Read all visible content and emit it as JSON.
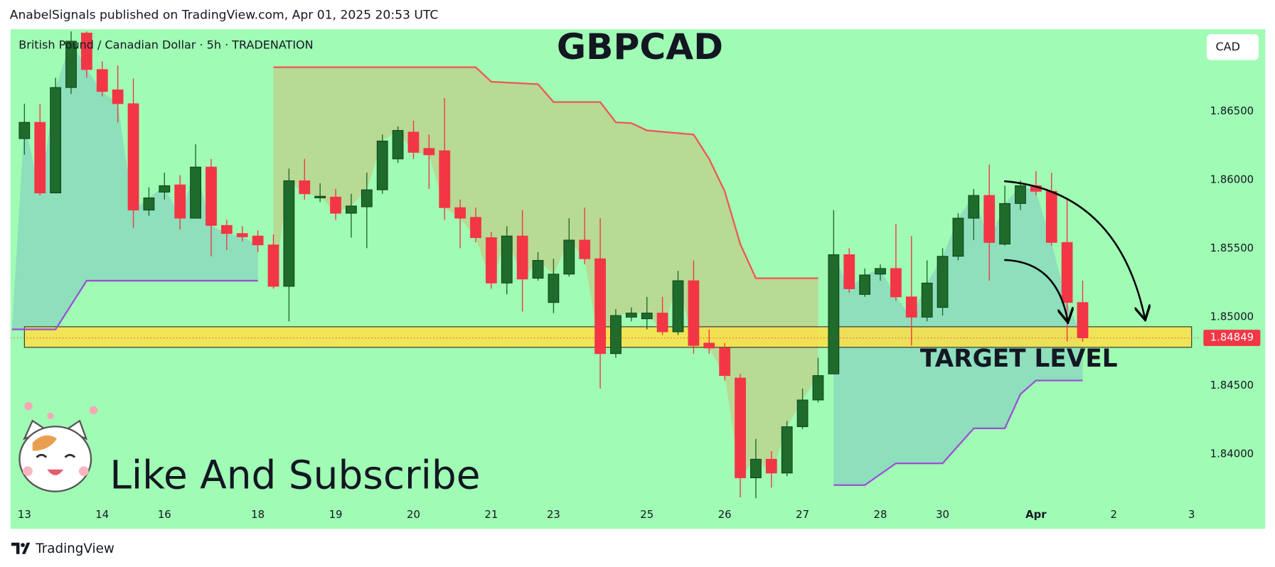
{
  "header": "AnabelSignals published on TradingView.com, Apr 01, 2025 20:53 UTC",
  "footer": "TradingView",
  "currency_button": "CAD",
  "call_to_action": "Like And Subscribe",
  "chart_data": {
    "type": "candlestick",
    "title": "GBPCAD",
    "subtitle": "British Pound / Canadian Dollar · 5h · TRADENATION",
    "up_color": "#1e6b2c",
    "down_color": "#f23645",
    "open": [
      1.86302,
      1.86421,
      1.85906,
      1.86675,
      1.87072,
      1.86806,
      1.86658,
      1.86557,
      1.85781,
      1.85912,
      1.85965,
      1.85722,
      1.86095,
      1.85669,
      1.8561,
      1.85592,
      1.85527,
      1.85225,
      1.85995,
      1.8587,
      1.85876,
      1.85758,
      1.85805,
      1.85929,
      1.86154,
      1.8635,
      1.86231,
      1.86214,
      1.85799,
      1.85728,
      1.8558,
      1.85249,
      1.85592,
      1.85284,
      1.85107,
      1.85314,
      1.85562,
      1.85426,
      1.84734,
      1.85,
      1.84988,
      1.8503,
      1.84893,
      1.85266,
      1.84811,
      1.84775,
      1.84556,
      1.83828,
      1.83964,
      1.83863,
      1.84201,
      1.84396,
      1.84586,
      1.85456,
      1.85166,
      1.85314,
      1.85355,
      1.85148,
      1.85,
      1.85071,
      1.85444,
      1.85722,
      1.85888,
      1.85533,
      1.85829,
      1.85959,
      1.85918,
      1.85545,
      1.85107
    ],
    "high": [
      1.86557,
      1.86557,
      1.86746,
      1.87084,
      1.87084,
      1.86865,
      1.86835,
      1.8674,
      1.85947,
      1.86054,
      1.86036,
      1.86261,
      1.86154,
      1.8571,
      1.85663,
      1.85633,
      1.85604,
      1.86083,
      1.86154,
      1.85977,
      1.85935,
      1.859,
      1.86054,
      1.86332,
      1.86391,
      1.86433,
      1.86332,
      1.86598,
      1.85858,
      1.85799,
      1.85622,
      1.85663,
      1.85781,
      1.85474,
      1.85426,
      1.85722,
      1.85799,
      1.85722,
      1.85059,
      1.85071,
      1.85148,
      1.85148,
      1.85337,
      1.85414,
      1.84911,
      1.84811,
      1.84586,
      1.84112,
      1.84023,
      1.84242,
      1.84479,
      1.84704,
      1.85781,
      1.85503,
      1.85355,
      1.85385,
      1.85681,
      1.85592,
      1.85414,
      1.85503,
      1.85758,
      1.85935,
      1.86113,
      1.85959,
      1.85995,
      1.86066,
      1.86054,
      1.85858,
      1.85266
    ],
    "low": [
      1.86184,
      1.85888,
      1.85906,
      1.86628,
      1.86746,
      1.8661,
      1.86421,
      1.85651,
      1.8574,
      1.85858,
      1.85639,
      1.85722,
      1.85444,
      1.85491,
      1.85551,
      1.85474,
      1.85207,
      1.8497,
      1.85858,
      1.8584,
      1.8571,
      1.8558,
      1.85503,
      1.859,
      1.86125,
      1.86154,
      1.85935,
      1.8571,
      1.85503,
      1.85545,
      1.85207,
      1.85166,
      1.85041,
      1.85266,
      1.8503,
      1.85296,
      1.85385,
      1.84479,
      1.84704,
      1.8497,
      1.84911,
      1.8487,
      1.8487,
      1.84734,
      1.84734,
      1.84538,
      1.83686,
      1.8368,
      1.83757,
      1.8384,
      1.84183,
      1.84378,
      1.84586,
      1.85178,
      1.85148,
      1.85266,
      1.85118,
      1.84793,
      1.8497,
      1.85012,
      1.85414,
      1.85562,
      1.85266,
      1.85521,
      1.85781,
      1.85888,
      1.85521,
      1.84822,
      1.84822
    ],
    "close": [
      1.86421,
      1.85906,
      1.86675,
      1.87013,
      1.86806,
      1.86646,
      1.86557,
      1.85781,
      1.8587,
      1.85959,
      1.85722,
      1.86095,
      1.85669,
      1.8561,
      1.85586,
      1.85527,
      1.85225,
      1.85995,
      1.859,
      1.85882,
      1.85758,
      1.85811,
      1.85929,
      1.86285,
      1.86362,
      1.86202,
      1.86184,
      1.85799,
      1.85722,
      1.8558,
      1.85249,
      1.85592,
      1.85278,
      1.85414,
      1.85314,
      1.85562,
      1.85426,
      1.84734,
      1.85012,
      1.8503,
      1.8503,
      1.84893,
      1.85266,
      1.84793,
      1.84775,
      1.84574,
      1.83828,
      1.83964,
      1.83863,
      1.84201,
      1.84396,
      1.84574,
      1.85456,
      1.85207,
      1.85308,
      1.85355,
      1.85148,
      1.85,
      1.85249,
      1.85444,
      1.85722,
      1.85888,
      1.85545,
      1.85829,
      1.85959,
      1.85918,
      1.85545,
      1.85107,
      1.84849
    ],
    "bands": [
      {
        "color": "#9c4fd6",
        "fill": "#7fc9c2",
        "x": [
          -0.8,
          2,
          4,
          15,
          15.5,
          52,
          54,
          56,
          59,
          61,
          63,
          64,
          65,
          68
        ],
        "values": [
          1.84911,
          1.84911,
          1.85266,
          1.85266,
          null,
          1.83775,
          1.83775,
          1.83934,
          1.83934,
          1.84189,
          1.84189,
          1.84438,
          1.84538,
          1.84538
        ]
      },
      {
        "color": "#f25555",
        "fill": "#cbc07a",
        "x": [
          16,
          29,
          30,
          33,
          34,
          37,
          38,
          39,
          40,
          43,
          44,
          45,
          46,
          47,
          51
        ],
        "values": [
          1.86823,
          1.86823,
          1.86717,
          1.86699,
          1.86569,
          1.86569,
          1.86421,
          1.86415,
          1.86362,
          1.86332,
          1.86154,
          1.85918,
          1.85533,
          1.85284,
          1.85284
        ]
      }
    ],
    "zone": {
      "low": 1.8478,
      "high": 1.8493,
      "label": "TARGET LEVEL",
      "color": "#fde047"
    },
    "last_price": 1.84849,
    "xlim": [
      -0.89,
      75.5
    ],
    "ylim": [
      1.8364,
      1.871
    ],
    "xticks": [
      {
        "value": 0,
        "label": "13"
      },
      {
        "value": 5,
        "label": "14"
      },
      {
        "value": 9,
        "label": "16"
      },
      {
        "value": 15,
        "label": "18"
      },
      {
        "value": 20,
        "label": "19"
      },
      {
        "value": 25,
        "label": "20"
      },
      {
        "value": 30,
        "label": "21"
      },
      {
        "value": 34,
        "label": "23"
      },
      {
        "value": 40,
        "label": "25"
      },
      {
        "value": 45,
        "label": "26"
      },
      {
        "value": 50,
        "label": "27"
      },
      {
        "value": 55,
        "label": "28"
      },
      {
        "value": 59,
        "label": "30"
      },
      {
        "value": 65,
        "label": "Apr"
      },
      {
        "value": 70,
        "label": "2"
      },
      {
        "value": 75,
        "label": "3"
      }
    ],
    "yticks": [
      {
        "value": 1.84,
        "label": "1.84000"
      },
      {
        "value": 1.845,
        "label": "1.84500"
      },
      {
        "value": 1.85,
        "label": "1.85000"
      },
      {
        "value": 1.855,
        "label": "1.85500"
      },
      {
        "value": 1.86,
        "label": "1.86000"
      },
      {
        "value": 1.865,
        "label": "1.86500"
      }
    ],
    "grid": false
  }
}
